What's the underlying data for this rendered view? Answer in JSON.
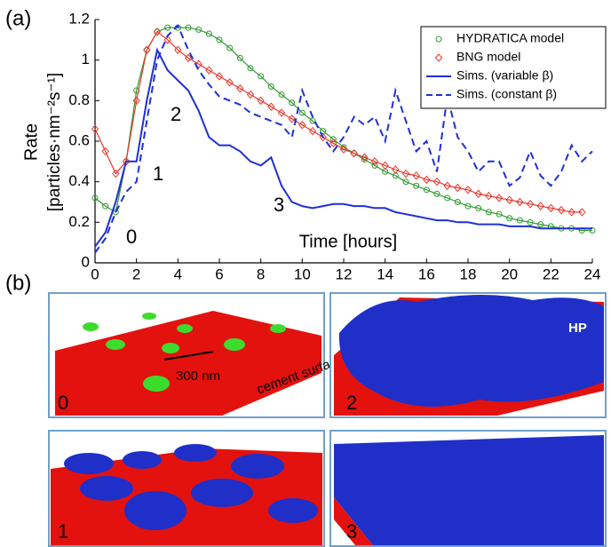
{
  "chart_data": {
    "type": "line",
    "panel_label": "(a)",
    "xlabel": "Time [hours]",
    "ylabel": "Rate",
    "ylabel_units": "[particles·nm⁻²s⁻¹]",
    "xlim": [
      0,
      24
    ],
    "xticks": [
      0,
      2,
      4,
      6,
      8,
      10,
      12,
      14,
      16,
      18,
      20,
      22,
      24
    ],
    "ylim": [
      0,
      1.2
    ],
    "yticks": [
      0,
      0.2,
      0.4,
      0.6,
      0.8,
      1,
      1.2
    ],
    "legend": "upper right",
    "x": [
      0,
      0.5,
      1,
      1.5,
      2,
      2.5,
      3,
      3.5,
      4,
      4.5,
      5,
      5.5,
      6,
      6.5,
      7,
      7.5,
      8,
      8.5,
      9,
      9.5,
      10,
      10.5,
      11,
      11.5,
      12,
      12.5,
      13,
      13.5,
      14,
      14.5,
      15,
      15.5,
      16,
      16.5,
      17,
      17.5,
      18,
      18.5,
      19,
      19.5,
      20,
      20.5,
      21,
      21.5,
      22,
      22.5,
      23,
      23.5,
      24
    ],
    "series": [
      {
        "name": "HYDRATICA model",
        "color": "#2e9a2e",
        "marker": "circle",
        "linestyle": "solid",
        "values": [
          0.32,
          0.28,
          0.25,
          0.5,
          0.85,
          1.05,
          1.14,
          1.16,
          1.16,
          1.16,
          1.15,
          1.13,
          1.1,
          1.06,
          1.01,
          0.96,
          0.92,
          0.87,
          0.83,
          0.79,
          0.74,
          0.7,
          0.65,
          0.61,
          0.57,
          0.54,
          0.51,
          0.48,
          0.45,
          0.43,
          0.4,
          0.38,
          0.36,
          0.34,
          0.32,
          0.3,
          0.28,
          0.27,
          0.25,
          0.24,
          0.22,
          0.21,
          0.2,
          0.19,
          0.18,
          0.17,
          0.17,
          0.16,
          0.16
        ]
      },
      {
        "name": "BNG model",
        "color": "#e8372c",
        "marker": "diamond",
        "linestyle": "solid",
        "values": [
          0.66,
          0.55,
          0.44,
          0.5,
          0.8,
          1.05,
          1.14,
          1.1,
          1.05,
          1.01,
          0.98,
          0.95,
          0.92,
          0.89,
          0.86,
          0.83,
          0.8,
          0.77,
          0.74,
          0.71,
          0.68,
          0.65,
          0.62,
          0.59,
          0.56,
          0.54,
          0.52,
          0.5,
          0.48,
          0.46,
          0.44,
          0.43,
          0.41,
          0.4,
          0.38,
          0.37,
          0.36,
          0.34,
          0.33,
          0.32,
          0.31,
          0.3,
          0.29,
          0.28,
          0.27,
          0.26,
          0.25,
          0.25,
          null
        ]
      },
      {
        "name": "Sims. (variable β)",
        "color": "#1f2fd6",
        "marker": "none",
        "linestyle": "solid",
        "values": [
          0.08,
          0.15,
          0.3,
          0.5,
          0.5,
          0.8,
          1.05,
          0.95,
          0.9,
          0.85,
          0.75,
          0.62,
          0.58,
          0.58,
          0.55,
          0.5,
          0.48,
          0.52,
          0.38,
          0.3,
          0.28,
          0.27,
          0.28,
          0.29,
          0.29,
          0.28,
          0.28,
          0.27,
          0.27,
          0.25,
          0.24,
          0.23,
          0.22,
          0.21,
          0.21,
          0.2,
          0.2,
          0.19,
          0.19,
          0.19,
          0.18,
          0.18,
          0.18,
          0.17,
          0.17,
          0.17,
          0.17,
          0.17,
          0.17
        ]
      },
      {
        "name": "Sims. (constant β)",
        "color": "#1f2fd6",
        "marker": "none",
        "linestyle": "dashed",
        "values": [
          0.05,
          0.12,
          0.25,
          0.35,
          0.4,
          0.7,
          1.0,
          1.12,
          1.17,
          1.05,
          0.95,
          0.88,
          0.82,
          0.8,
          0.78,
          0.74,
          0.72,
          0.7,
          0.68,
          0.62,
          0.85,
          0.72,
          0.62,
          0.55,
          0.62,
          0.72,
          0.68,
          0.72,
          0.6,
          0.85,
          0.7,
          0.55,
          0.6,
          0.45,
          0.82,
          0.62,
          0.55,
          0.45,
          0.5,
          0.5,
          0.38,
          0.42,
          0.55,
          0.43,
          0.38,
          0.45,
          0.58,
          0.5,
          0.55
        ]
      }
    ],
    "annotations": [
      "0",
      "1",
      "2",
      "3"
    ]
  },
  "panels": {
    "label": "(b)",
    "tiles": [
      "0",
      "1",
      "2",
      "3"
    ],
    "scale_bar": "300 nm",
    "surface_label": "cement surface",
    "hp_label": "HP"
  }
}
